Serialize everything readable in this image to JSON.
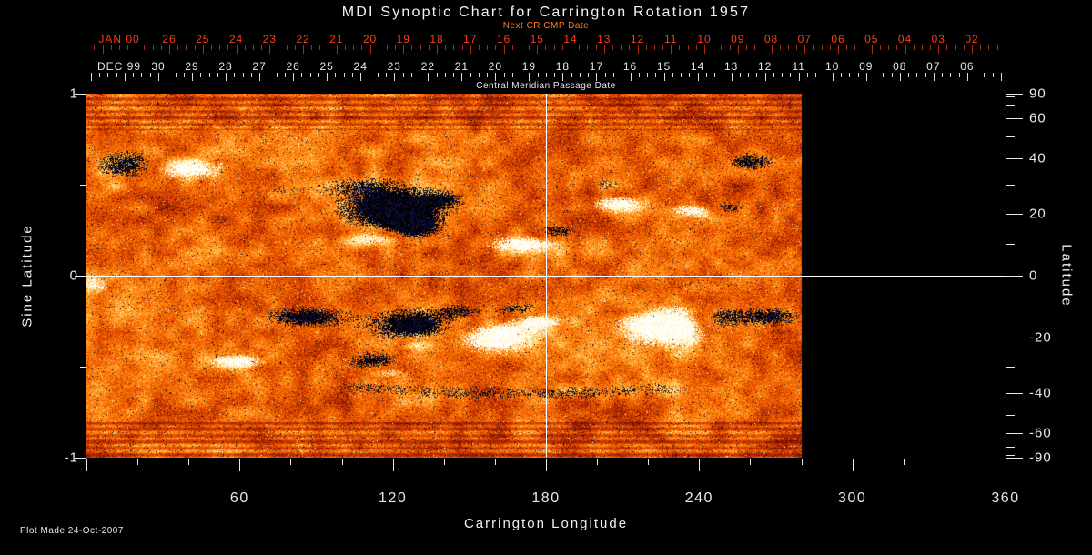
{
  "title": "MDI Synoptic Chart for Carrington Rotation 1957",
  "header": {
    "next_cr_cmp_label": "Next CR CMP Date",
    "cmp_label": "Central Meridian Passage Date",
    "jan_month": "JAN 00",
    "jan_days": [
      "26",
      "25",
      "24",
      "23",
      "22",
      "21",
      "20",
      "19",
      "18",
      "17",
      "16",
      "15",
      "14",
      "13",
      "12",
      "11",
      "10",
      "09",
      "08",
      "07",
      "06",
      "05",
      "04",
      "03",
      "02"
    ],
    "dec_month": "DEC 99",
    "dec_days": [
      "30",
      "29",
      "28",
      "27",
      "26",
      "25",
      "24",
      "23",
      "22",
      "21",
      "20",
      "19",
      "18",
      "17",
      "16",
      "15",
      "14",
      "13",
      "12",
      "11",
      "10",
      "09",
      "08",
      "07",
      "06"
    ]
  },
  "axes": {
    "x_label": "Carrington Longitude",
    "x_ticks": [
      "60",
      "120",
      "180",
      "240",
      "300",
      "360"
    ],
    "y_left_label": "Sine Latitude",
    "y_left_ticks": [
      "1",
      "0",
      "-1"
    ],
    "y_right_label": "Latitude",
    "y_right_ticks": [
      "90",
      "60",
      "40",
      "20",
      "0",
      "-20",
      "-40",
      "-60",
      "-90"
    ]
  },
  "footer": {
    "plot_made": "Plot Made 24-Oct-2007"
  },
  "colors": {
    "background": "#000000",
    "text": "#f2f2f2",
    "next_cr_text": "#ff7d1f",
    "jan_text": "#ff3d14",
    "jan_tick": "#b72800",
    "dec_tick": "#dcdcdc",
    "reference_line": "#ffffff"
  },
  "chart_data": {
    "type": "heatmap",
    "title": "MDI Synoptic Chart for Carrington Rotation 1957",
    "description": "Solar photospheric magnetic field synoptic map: mottled orange/red/yellow field with black (negative polarity) and white (positive polarity) active regions; longitudes beyond ~280 deg not yet observed (black).",
    "xlabel": "Carrington Longitude",
    "ylabel_left": "Sine Latitude",
    "ylabel_right": "Latitude",
    "xlim": [
      0,
      360
    ],
    "ylim_sine_latitude": [
      -1,
      1
    ],
    "x_ticks": [
      60,
      120,
      180,
      240,
      300,
      360
    ],
    "y_left_ticks": [
      1,
      0,
      -1
    ],
    "y_right_ticks_deg": [
      90,
      60,
      40,
      20,
      0,
      -20,
      -40,
      -60,
      -90
    ],
    "observed_longitude_extent": [
      0,
      280
    ],
    "reference_lines": {
      "carrington_longitude": 180,
      "sine_latitude": 0
    },
    "cmp_date_axis_dec_1999": [
      30,
      29,
      28,
      27,
      26,
      25,
      24,
      23,
      22,
      21,
      20,
      19,
      18,
      17,
      16,
      15,
      14,
      13,
      12,
      11,
      10,
      9,
      8,
      7,
      6
    ],
    "next_cr_cmp_date_axis_jan_2000": [
      26,
      25,
      24,
      23,
      22,
      21,
      20,
      19,
      18,
      17,
      16,
      15,
      14,
      13,
      12,
      11,
      10,
      9,
      8,
      7,
      6,
      5,
      4,
      3,
      2
    ],
    "field_palette": [
      "#3c0600",
      "#6e0e00",
      "#9b1e00",
      "#c23400",
      "#e04c00",
      "#f26400",
      "#ff7e06",
      "#ff9c24",
      "#ffbe52",
      "#ffe392",
      "#fff8d0"
    ],
    "negative_polarity_colors": [
      "#000000",
      "#141450"
    ],
    "positive_polarity_colors": [
      "#ffffff",
      "#fff5c8"
    ],
    "active_regions": [
      {
        "lon": 3,
        "lat": -3,
        "pol": 1,
        "w": 6,
        "h": 0.05,
        "s": 0.7
      },
      {
        "lon": 18,
        "lat": 37,
        "pol": -1,
        "w": 14,
        "h": 0.085,
        "s": 1.1
      },
      {
        "lon": 36,
        "lat": 36,
        "pol": 1,
        "w": 18,
        "h": 0.065,
        "s": 1.0
      },
      {
        "lon": 12,
        "lat": 30,
        "pol": 1,
        "w": 6,
        "h": 0.04,
        "s": 0.6
      },
      {
        "lon": 119,
        "lat": 22,
        "pol": -1,
        "w": 20,
        "h": 0.13,
        "s": 1.15
      },
      {
        "lon": 113,
        "lat": 12,
        "pol": 1,
        "w": 11,
        "h": 0.045,
        "s": 0.85
      },
      {
        "lon": 128,
        "lat": 16,
        "pol": -1,
        "w": 10,
        "h": 0.07,
        "s": 0.9
      },
      {
        "lon": 140,
        "lat": 25,
        "pol": -1,
        "w": 8,
        "h": 0.05,
        "s": 0.6
      },
      {
        "lon": 171,
        "lat": 10,
        "pol": 1,
        "w": 14,
        "h": 0.05,
        "s": 0.95
      },
      {
        "lon": 184,
        "lat": 14,
        "pol": -1,
        "w": 8,
        "h": 0.04,
        "s": 0.8
      },
      {
        "lon": 209,
        "lat": 23,
        "pol": 1,
        "w": 11,
        "h": 0.05,
        "s": 0.9
      },
      {
        "lon": 203,
        "lat": 30,
        "pol": -1,
        "w": 7,
        "h": 0.04,
        "s": 0.55
      },
      {
        "lon": 239,
        "lat": 21,
        "pol": 1,
        "w": 10,
        "h": 0.04,
        "s": 0.9
      },
      {
        "lon": 250,
        "lat": 22,
        "pol": -1,
        "w": 8,
        "h": 0.04,
        "s": 0.8
      },
      {
        "lon": 260,
        "lat": 39,
        "pol": -1,
        "w": 10,
        "h": 0.05,
        "s": 0.8
      },
      {
        "lon": 86,
        "lat": -13,
        "pol": -1,
        "w": 17,
        "h": 0.06,
        "s": 0.9
      },
      {
        "lon": 128,
        "lat": -16,
        "pol": -1,
        "w": 18,
        "h": 0.1,
        "s": 1.0
      },
      {
        "lon": 129,
        "lat": -22,
        "pol": 1,
        "w": 8,
        "h": 0.04,
        "s": 0.8
      },
      {
        "lon": 160,
        "lat": -20,
        "pol": 1,
        "w": 16,
        "h": 0.08,
        "s": 1.1
      },
      {
        "lon": 176,
        "lat": -14,
        "pol": 1,
        "w": 10,
        "h": 0.05,
        "s": 0.9
      },
      {
        "lon": 170,
        "lat": -11,
        "pol": -1,
        "w": 12,
        "h": 0.045,
        "s": 0.8
      },
      {
        "lon": 146,
        "lat": -11,
        "pol": -1,
        "w": 8,
        "h": 0.04,
        "s": 0.6
      },
      {
        "lon": 228,
        "lat": -16,
        "pol": 1,
        "w": 20,
        "h": 0.11,
        "s": 1.2
      },
      {
        "lon": 247,
        "lat": -14,
        "pol": -1,
        "w": 10,
        "h": 0.08,
        "s": 0.9
      },
      {
        "lon": 214,
        "lat": -10,
        "pol": -1,
        "w": 8,
        "h": 0.04,
        "s": 0.6
      },
      {
        "lon": 59,
        "lat": -28,
        "pol": 1,
        "w": 11,
        "h": 0.04,
        "s": 0.9
      },
      {
        "lon": 112,
        "lat": -28,
        "pol": -1,
        "w": 11,
        "h": 0.055,
        "s": 0.8
      },
      {
        "lon": 118,
        "lat": -32,
        "pol": 1,
        "w": 7,
        "h": 0.03,
        "s": 0.7
      },
      {
        "lon": 267,
        "lat": -13,
        "pol": -1,
        "w": 14,
        "h": 0.055,
        "s": 0.85
      },
      {
        "lon": 110,
        "lat": -38,
        "pol": -1,
        "w": 25,
        "h": 0.05,
        "s": 0.45
      },
      {
        "lon": 150,
        "lat": -40,
        "pol": -1,
        "w": 25,
        "h": 0.05,
        "s": 0.45
      },
      {
        "lon": 190,
        "lat": -40,
        "pol": -1,
        "w": 25,
        "h": 0.05,
        "s": 0.45
      },
      {
        "lon": 225,
        "lat": -38,
        "pol": -1,
        "w": 22,
        "h": 0.05,
        "s": 0.4
      },
      {
        "lon": 75,
        "lat": 28,
        "pol": -1,
        "w": 18,
        "h": 0.05,
        "s": 0.35
      },
      {
        "lon": 105,
        "lat": 30,
        "pol": -1,
        "w": 15,
        "h": 0.05,
        "s": 0.35
      }
    ],
    "plot_made": "24-Oct-2007"
  }
}
